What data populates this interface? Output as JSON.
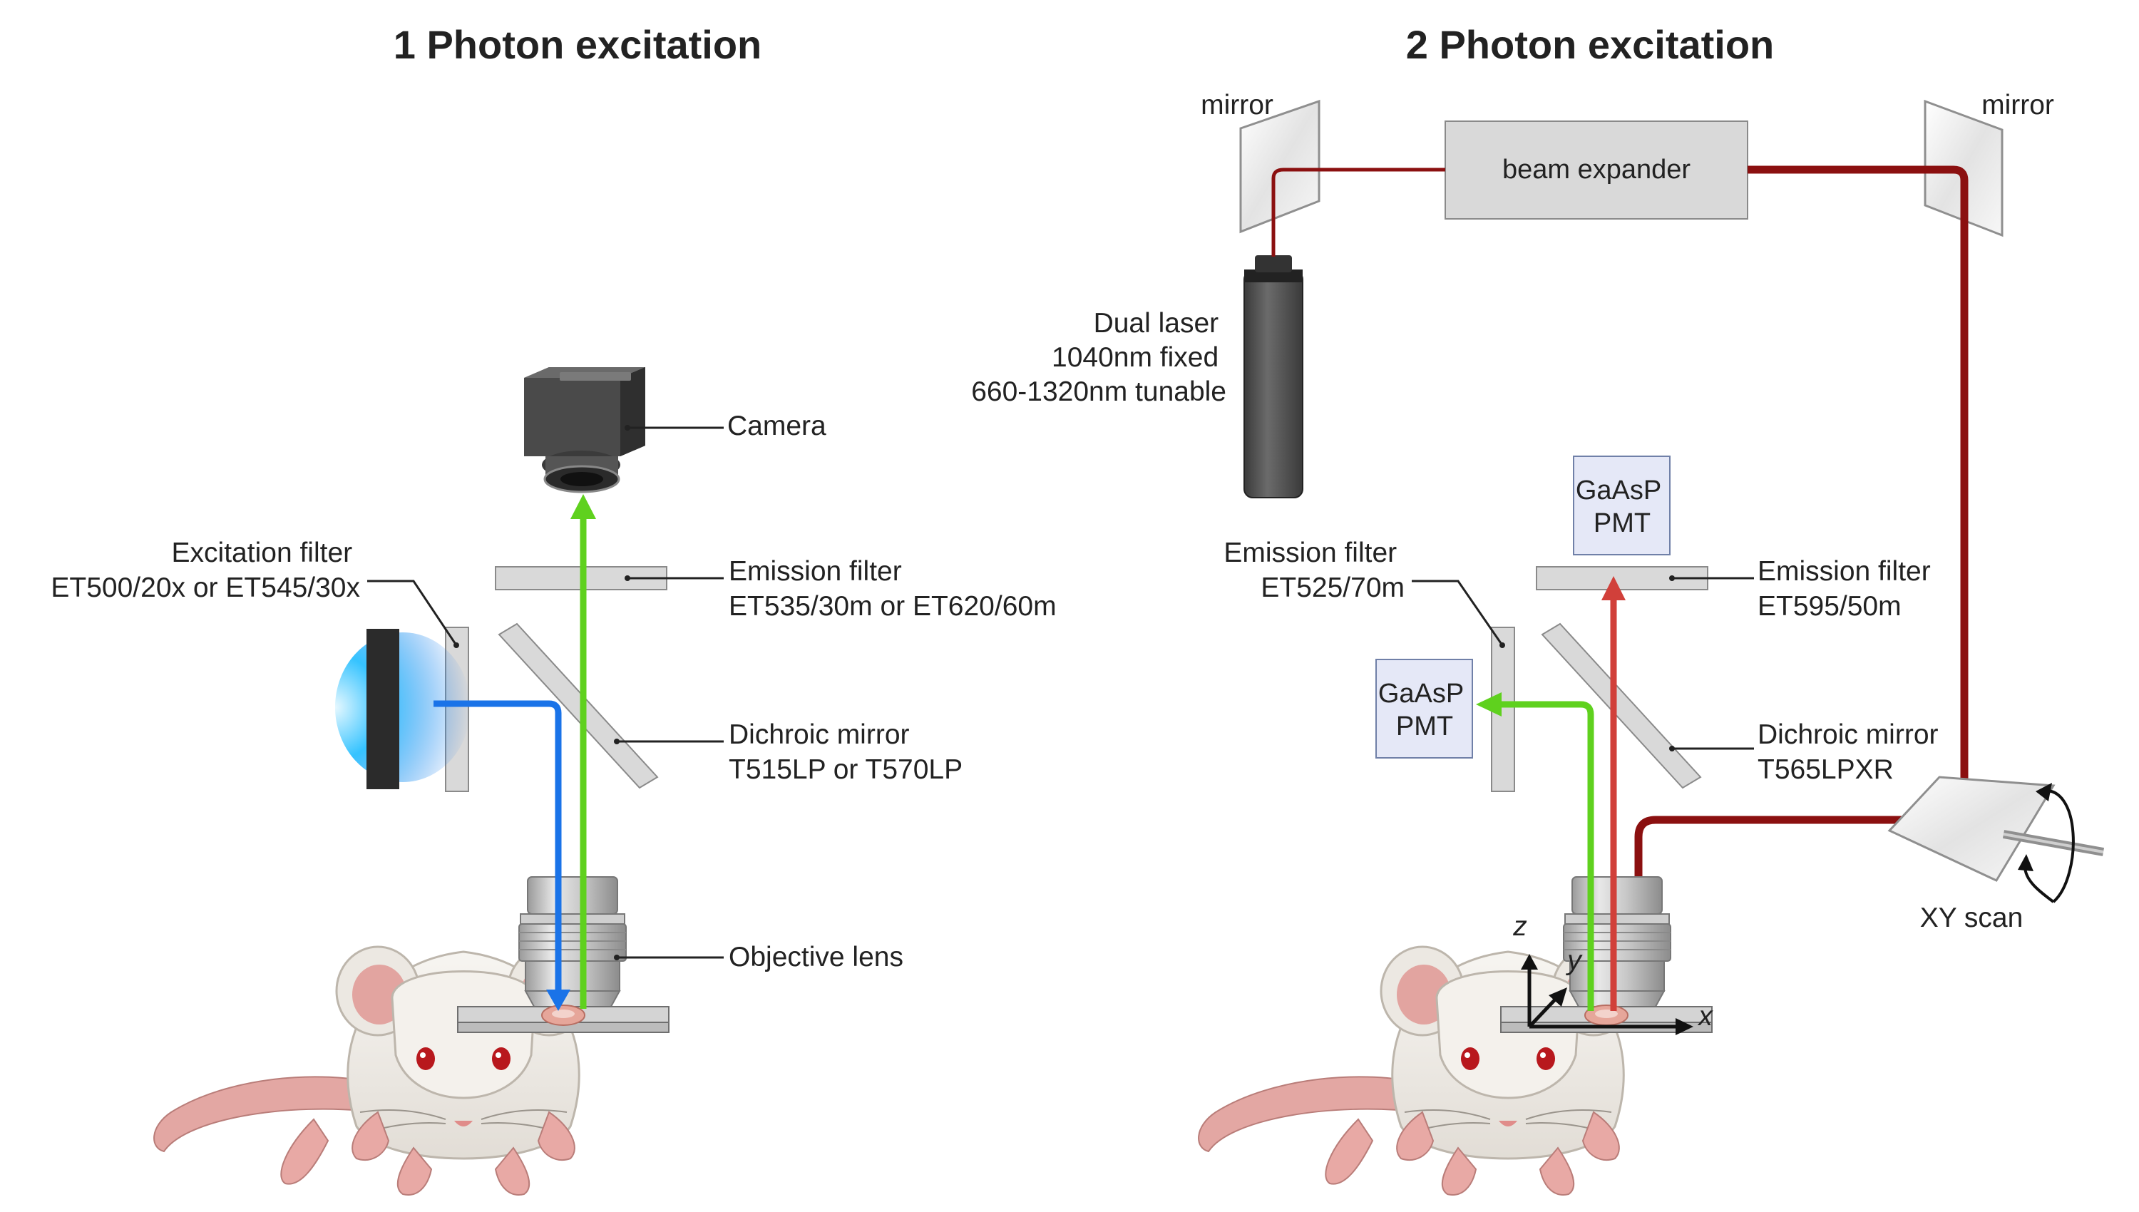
{
  "titles": {
    "one_photon": "1 Photon excitation",
    "two_photon": "2 Photon excitation"
  },
  "one_photon": {
    "camera": "Camera",
    "excitation_filter": {
      "line1": "Excitation filter",
      "line2": "ET500/20x or ET545/30x"
    },
    "emission_filter": {
      "line1": "Emission filter",
      "line2": "ET535/30m or ET620/60m"
    },
    "dichroic_mirror": {
      "line1": "Dichroic mirror",
      "line2": "T515LP or T570LP"
    },
    "objective_lens": "Objective lens"
  },
  "two_photon": {
    "mirror_left": "mirror",
    "mirror_right": "mirror",
    "beam_expander": "beam expander",
    "laser": {
      "line1": "Dual laser",
      "line2": "1040nm fixed",
      "line3": "660-1320nm tunable"
    },
    "pmt_top": {
      "line1": "GaAsP",
      "line2": "PMT"
    },
    "pmt_left": {
      "line1": "GaAsP",
      "line2": "PMT"
    },
    "emission_filter_left": {
      "line1": "Emission filter",
      "line2": "ET525/70m"
    },
    "emission_filter_right": {
      "line1": "Emission filter",
      "line2": "ET595/50m"
    },
    "dichroic_mirror": {
      "line1": "Dichroic mirror",
      "line2": "T565LPXR"
    },
    "xy_scan": "XY scan",
    "axes": {
      "x": "x",
      "y": "y",
      "z": "z"
    }
  },
  "colors": {
    "blue_beam": "#1a73e8",
    "green_beam": "#5fd11e",
    "red_beam": "#d1403a",
    "dark_red_beam": "#8b1010",
    "filter_gray": "#d9d9d9",
    "pmt_fill": "#e5e8f7"
  }
}
